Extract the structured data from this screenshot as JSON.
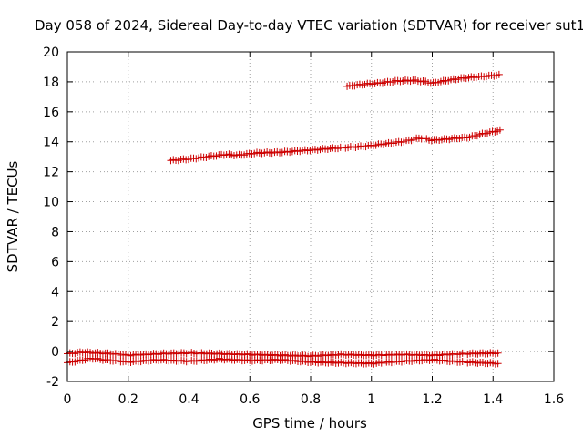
{
  "chart_data": {
    "type": "scatter",
    "title": "Day 058 of 2024, Sidereal Day-to-day VTEC variation (SDTVAR) for receiver sut1",
    "xlabel": "GPS time / hours",
    "ylabel": "SDTVAR / TECUs",
    "xlim": [
      0,
      1.6
    ],
    "ylim": [
      -2,
      20
    ],
    "xticks": [
      0,
      0.2,
      0.4,
      0.6,
      0.8,
      1,
      1.2,
      1.4,
      1.6
    ],
    "xtick_labels": [
      "0",
      "0.2",
      "0.4",
      "0.6",
      "0.8",
      "1",
      "1.2",
      "1.4",
      "1.6"
    ],
    "yticks": [
      -2,
      0,
      2,
      4,
      6,
      8,
      10,
      12,
      14,
      16,
      18,
      20
    ],
    "ytick_labels": [
      "-2",
      "0",
      "2",
      "4",
      "6",
      "8",
      "10",
      "12",
      "14",
      "16",
      "18",
      "20"
    ],
    "grid": true,
    "marker": "+",
    "marker_color": "#cc0000",
    "series": [
      {
        "name": "trace-upper",
        "x_start": 0.92,
        "x_end": 1.42,
        "step": 0.00833,
        "knots": [
          [
            0.92,
            17.7
          ],
          [
            0.98,
            17.85
          ],
          [
            1.02,
            17.9
          ],
          [
            1.08,
            18.05
          ],
          [
            1.14,
            18.1
          ],
          [
            1.18,
            18.0
          ],
          [
            1.2,
            17.9
          ],
          [
            1.25,
            18.1
          ],
          [
            1.3,
            18.25
          ],
          [
            1.36,
            18.35
          ],
          [
            1.42,
            18.45
          ]
        ]
      },
      {
        "name": "trace-middle",
        "x_start": 0.34,
        "x_end": 1.42,
        "step": 0.00833,
        "knots": [
          [
            0.34,
            12.75
          ],
          [
            0.4,
            12.85
          ],
          [
            0.46,
            13.0
          ],
          [
            0.52,
            13.15
          ],
          [
            0.56,
            13.1
          ],
          [
            0.62,
            13.25
          ],
          [
            0.7,
            13.3
          ],
          [
            0.8,
            13.45
          ],
          [
            0.9,
            13.6
          ],
          [
            0.98,
            13.7
          ],
          [
            1.04,
            13.85
          ],
          [
            1.1,
            14.0
          ],
          [
            1.16,
            14.25
          ],
          [
            1.2,
            14.1
          ],
          [
            1.26,
            14.2
          ],
          [
            1.32,
            14.3
          ],
          [
            1.36,
            14.5
          ],
          [
            1.42,
            14.75
          ]
        ]
      },
      {
        "name": "trace-near-zero-a",
        "x_start": 0.0,
        "x_end": 1.42,
        "step": 0.00833,
        "knots": [
          [
            0.0,
            -0.15
          ],
          [
            0.05,
            -0.05
          ],
          [
            0.1,
            -0.1
          ],
          [
            0.15,
            -0.15
          ],
          [
            0.2,
            -0.25
          ],
          [
            0.3,
            -0.15
          ],
          [
            0.4,
            -0.1
          ],
          [
            0.5,
            -0.15
          ],
          [
            0.6,
            -0.2
          ],
          [
            0.7,
            -0.25
          ],
          [
            0.8,
            -0.3
          ],
          [
            0.9,
            -0.2
          ],
          [
            1.0,
            -0.25
          ],
          [
            1.1,
            -0.2
          ],
          [
            1.2,
            -0.25
          ],
          [
            1.3,
            -0.15
          ],
          [
            1.42,
            -0.1
          ]
        ]
      },
      {
        "name": "trace-near-zero-b",
        "x_start": 0.0,
        "x_end": 1.42,
        "step": 0.00833,
        "knots": [
          [
            0.0,
            -0.75
          ],
          [
            0.04,
            -0.6
          ],
          [
            0.08,
            -0.45
          ],
          [
            0.12,
            -0.55
          ],
          [
            0.2,
            -0.7
          ],
          [
            0.3,
            -0.55
          ],
          [
            0.4,
            -0.65
          ],
          [
            0.5,
            -0.5
          ],
          [
            0.6,
            -0.6
          ],
          [
            0.7,
            -0.55
          ],
          [
            0.8,
            -0.7
          ],
          [
            0.9,
            -0.75
          ],
          [
            1.0,
            -0.8
          ],
          [
            1.1,
            -0.65
          ],
          [
            1.2,
            -0.55
          ],
          [
            1.3,
            -0.7
          ],
          [
            1.42,
            -0.8
          ]
        ]
      }
    ]
  }
}
